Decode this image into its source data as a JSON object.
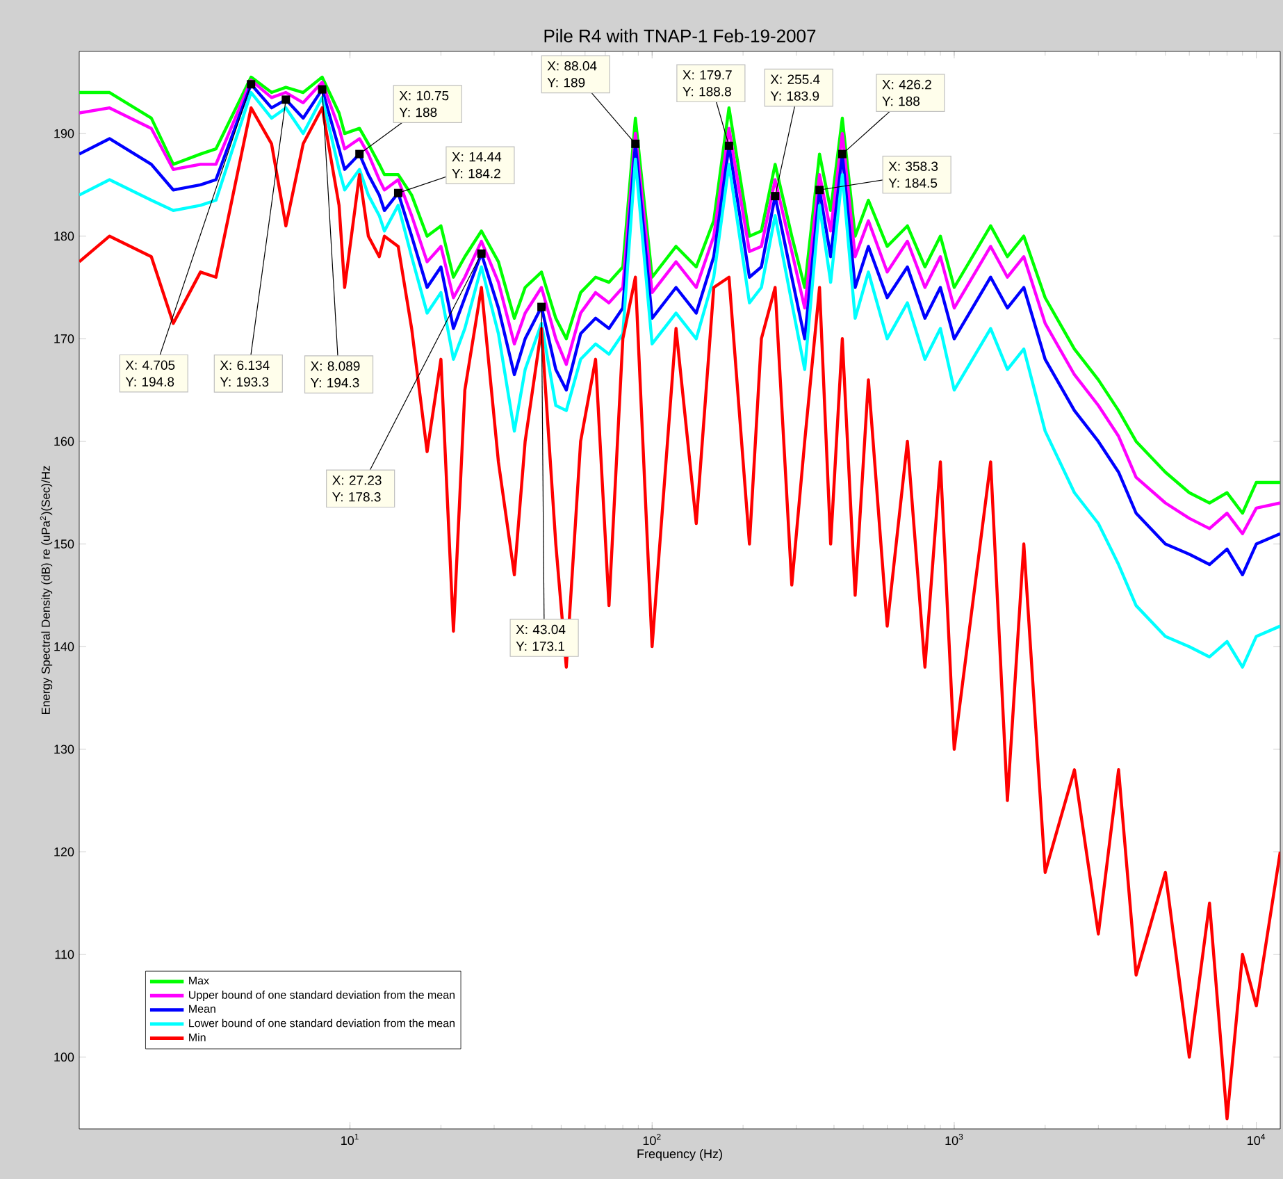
{
  "chart_data": {
    "type": "line",
    "title": "Pile R4 with TNAP-1 Feb-19-2007",
    "xlabel": "Frequency (Hz)",
    "ylabel": "Energy Spectral Density (dB) re (uPa$^{2}$)(Sec)/Hz",
    "log": "x",
    "xlim": [
      1.27,
      12000
    ],
    "ylim": [
      93,
      198
    ],
    "xticks": [
      {
        "value": 10,
        "label": "10$^{1}$"
      },
      {
        "value": 100,
        "label": "10$^{2}$"
      },
      {
        "value": 1000,
        "label": "10$^{3}$"
      },
      {
        "value": 10000,
        "label": "10$^{4}$"
      }
    ],
    "yticks": [
      100,
      110,
      120,
      130,
      140,
      150,
      160,
      170,
      180,
      190
    ],
    "legend": "bottom left",
    "x": [
      1.27,
      1.6,
      2.2,
      2.6,
      3.2,
      3.6,
      4.705,
      5.5,
      6.134,
      7,
      8.089,
      9.2,
      9.6,
      10.75,
      11.5,
      12.5,
      13,
      14.44,
      16,
      18,
      20,
      22,
      24,
      27.23,
      31,
      35,
      38,
      43.04,
      48,
      52,
      58,
      65,
      72,
      80,
      88.04,
      100,
      120,
      140,
      160,
      179.7,
      210,
      230,
      255.4,
      290,
      320,
      358.3,
      390,
      426.2,
      470,
      520,
      600,
      700,
      800,
      900,
      1000,
      1320,
      1500,
      1700,
      2000,
      2500,
      3000,
      3500,
      4000,
      5000,
      6000,
      7000,
      8000,
      9000,
      10000,
      12000
    ],
    "series": [
      {
        "name": "Max",
        "color": "#00ff00",
        "values": [
          194,
          194,
          191.5,
          187,
          188,
          188.5,
          195.5,
          194,
          194.5,
          194,
          195.5,
          192,
          190,
          190.5,
          189,
          187,
          186,
          186,
          184,
          180,
          181,
          176,
          178,
          180.5,
          177.5,
          172,
          175,
          176.5,
          172,
          170,
          174.5,
          176,
          175.5,
          177,
          191.5,
          176,
          179,
          177,
          181.5,
          192.5,
          180,
          180.5,
          187,
          180,
          175,
          188,
          182.5,
          191.5,
          180,
          183.5,
          179,
          181,
          177,
          180,
          175,
          181,
          178,
          180,
          174,
          169,
          166,
          163,
          160,
          157,
          155,
          154,
          155,
          153,
          156,
          156
        ]
      },
      {
        "name": "Upper bound of one standard deviation from the mean",
        "color": "#ff00ff",
        "values": [
          192,
          192.5,
          190.5,
          186.5,
          187,
          187,
          195.2,
          193.5,
          194,
          193,
          195,
          190.5,
          188.5,
          189.5,
          188,
          185.5,
          184.5,
          185.5,
          182,
          177.5,
          179,
          174,
          176,
          179.5,
          175.5,
          169.5,
          172.5,
          175,
          170,
          167.5,
          172.5,
          174.5,
          173.5,
          175,
          190,
          174.5,
          177.5,
          175,
          180,
          190.5,
          178.5,
          179,
          185.5,
          178.5,
          173,
          186,
          180.5,
          190,
          178,
          181.5,
          176.5,
          179.5,
          175,
          178,
          173,
          179,
          176,
          178,
          171.5,
          166.5,
          163.5,
          160.5,
          156.5,
          154,
          152.5,
          151.5,
          153,
          151,
          153.5,
          154
        ]
      },
      {
        "name": "Mean",
        "color": "#0000ff",
        "values": [
          188,
          189.5,
          187,
          184.5,
          185,
          185.5,
          194.8,
          192.5,
          193.3,
          191.5,
          194.3,
          188.5,
          186.5,
          188,
          186,
          184,
          182.5,
          184.2,
          180,
          175,
          177,
          171,
          174,
          178.3,
          173,
          166.5,
          170,
          173.1,
          167,
          165,
          170.5,
          172,
          171,
          173,
          189,
          172,
          175,
          172.5,
          178,
          188.8,
          176,
          177,
          183.9,
          176,
          170,
          184.5,
          178,
          188,
          175,
          179,
          174,
          177,
          172,
          175,
          170,
          176,
          173,
          175,
          168,
          163,
          160,
          157,
          153,
          150,
          149,
          148,
          149.5,
          147,
          150,
          151
        ]
      },
      {
        "name": "Lower bound of one standard deviation from the mean",
        "color": "#00ffff",
        "values": [
          184,
          185.5,
          183.5,
          182.5,
          183,
          183.5,
          194,
          191.5,
          192.5,
          190,
          193.5,
          186.5,
          184.5,
          186.5,
          184,
          182,
          180.5,
          183,
          178,
          172.5,
          174.5,
          168,
          171,
          177,
          170.5,
          161,
          167,
          171.5,
          163.5,
          163,
          168,
          169.5,
          168.5,
          170.5,
          187.5,
          169.5,
          172.5,
          170,
          176,
          187,
          173.5,
          175,
          182,
          173.5,
          167,
          183,
          175.5,
          186,
          172,
          176.5,
          170,
          173.5,
          168,
          171,
          165,
          171,
          167,
          169,
          161,
          155,
          152,
          148,
          144,
          141,
          140,
          139,
          140.5,
          138,
          141,
          142
        ]
      },
      {
        "name": "Min",
        "color": "#ff0000",
        "values": [
          177.5,
          180,
          178,
          171.5,
          176.5,
          176,
          192.5,
          189,
          181,
          189,
          192.5,
          183,
          175,
          186,
          180,
          178,
          180,
          179,
          171,
          159,
          168,
          141.5,
          165,
          175,
          158,
          147,
          160,
          171,
          150,
          138,
          160,
          168,
          144,
          170,
          176,
          140,
          171,
          152,
          175,
          176,
          150,
          170,
          175,
          146,
          160,
          175,
          150,
          170,
          145,
          166,
          142,
          160,
          138,
          158,
          130,
          158,
          125,
          150,
          118,
          128,
          112,
          128,
          108,
          118,
          100,
          115,
          94,
          110,
          105,
          120
        ]
      }
    ],
    "annotations": [
      {
        "text": "X: 4.705 Y: 194.8",
        "x": 4.705,
        "y": 194.8
      },
      {
        "text": "X: 6.134 Y: 193.3",
        "x": 6.134,
        "y": 193.3
      },
      {
        "text": "X: 8.089 Y: 194.3",
        "x": 8.089,
        "y": 194.3
      },
      {
        "text": "X: 10.75 Y: 188",
        "x": 10.75,
        "y": 188
      },
      {
        "text": "X: 14.44 Y: 184.2",
        "x": 14.44,
        "y": 184.2
      },
      {
        "text": "X: 27.23 Y: 178.3",
        "x": 27.23,
        "y": 178.3
      },
      {
        "text": "X: 43.04 Y: 173.1",
        "x": 43.04,
        "y": 173.1
      },
      {
        "text": "X: 88.04 Y: 189",
        "x": 88.04,
        "y": 189
      },
      {
        "text": "X: 179.7 Y: 188.8",
        "x": 179.7,
        "y": 188.8
      },
      {
        "text": "X: 255.4 Y: 183.9",
        "x": 255.4,
        "y": 183.9
      },
      {
        "text": "X: 358.3 Y: 184.5",
        "x": 358.3,
        "y": 184.5
      },
      {
        "text": "X: 426.2 Y: 188",
        "x": 426.2,
        "y": 188
      }
    ]
  }
}
